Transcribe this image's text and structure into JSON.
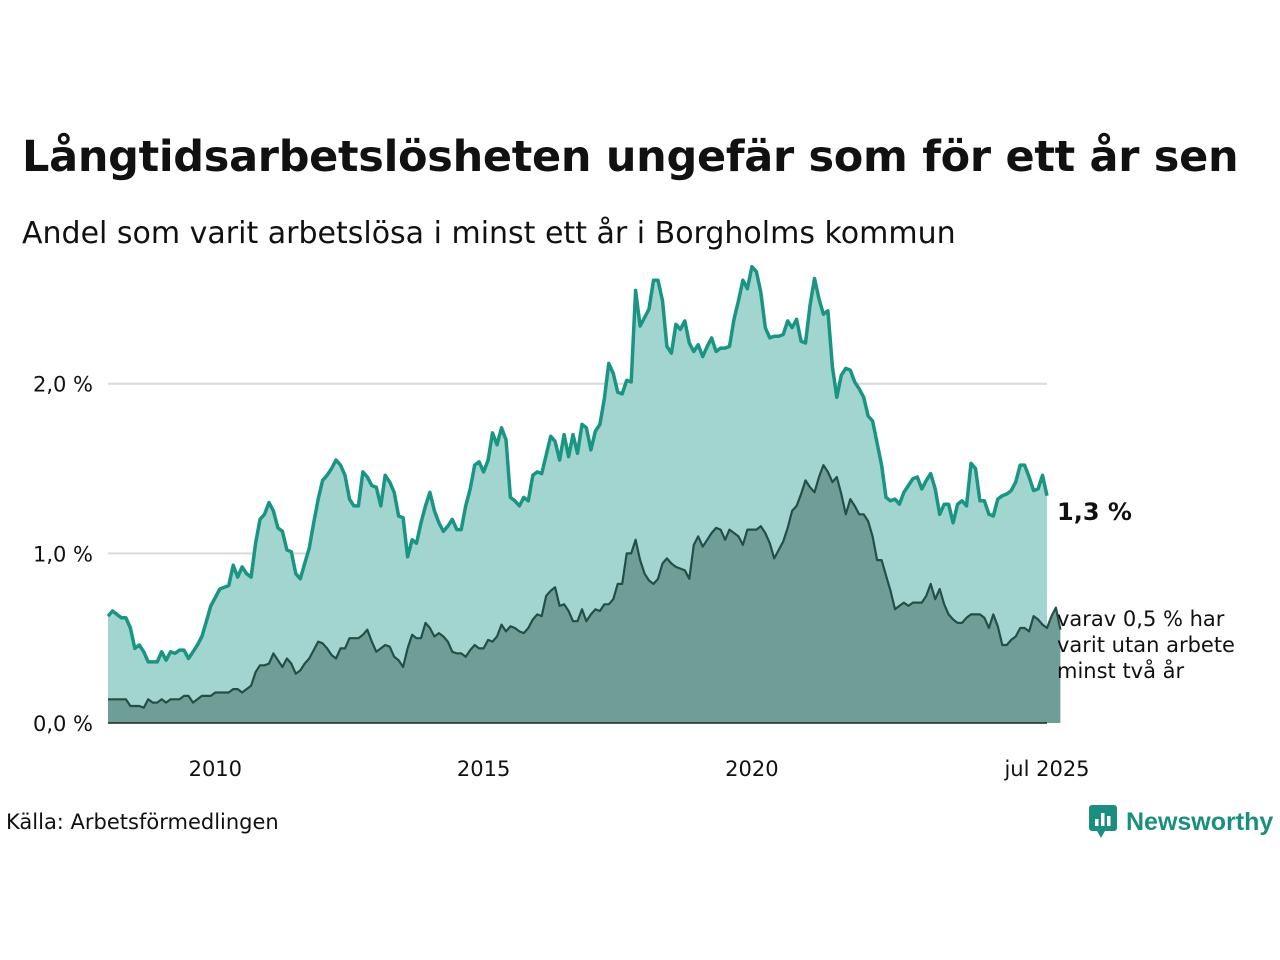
{
  "title": "Långtidsarbetslösheten ungefär som för ett år sen",
  "subtitle": "Andel som varit arbetslösa i minst ett år i Borgholms kommun",
  "source": "Källa: Arbetsförmedlingen",
  "brand": {
    "name": "Newsworthy",
    "icon": "newsworthy-logo-icon"
  },
  "colors": {
    "series1_line": "#1a9483",
    "series1_fill": "#a2d5cf",
    "series2_line": "#244f49",
    "series2_fill": "#6f9e96",
    "grid": "#d9d9d9",
    "brand": "#1a8f7f"
  },
  "chart_data": {
    "type": "area",
    "x_start": "2008-01",
    "x_end": "2025-07",
    "x_frequency": "monthly",
    "xlim": [
      "2008-01",
      "2025-07"
    ],
    "ylim": [
      0,
      2.8
    ],
    "y_ticks": [
      0,
      1,
      2
    ],
    "y_tick_labels": [
      "0,0 %",
      "1,0 %",
      "2,0 %"
    ],
    "x_ticks": [
      "2010-01",
      "2015-01",
      "2020-01",
      "2025-07"
    ],
    "x_tick_labels": [
      "2010",
      "2015",
      "2020",
      "jul 2025"
    ],
    "grid": true,
    "end_label": "1,3 %",
    "series2_label_lines": [
      "varav 0,5 % har",
      "varit utan arbete",
      "minst två år"
    ],
    "series": [
      {
        "name": "Andel arbetslösa minst ett år",
        "values": [
          0.63,
          0.66,
          0.64,
          0.62,
          0.62,
          0.56,
          0.44,
          0.46,
          0.42,
          0.36,
          0.36,
          0.36,
          0.42,
          0.37,
          0.42,
          0.41,
          0.43,
          0.43,
          0.38,
          0.42,
          0.46,
          0.51,
          0.6,
          0.69,
          0.74,
          0.79,
          0.8,
          0.81,
          0.93,
          0.86,
          0.92,
          0.88,
          0.86,
          1.06,
          1.2,
          1.23,
          1.3,
          1.25,
          1.15,
          1.13,
          1.02,
          1.01,
          0.88,
          0.85,
          0.94,
          1.03,
          1.18,
          1.32,
          1.43,
          1.46,
          1.5,
          1.55,
          1.52,
          1.46,
          1.32,
          1.28,
          1.28,
          1.48,
          1.45,
          1.4,
          1.39,
          1.28,
          1.46,
          1.42,
          1.36,
          1.22,
          1.21,
          0.98,
          1.08,
          1.06,
          1.18,
          1.28,
          1.36,
          1.25,
          1.18,
          1.13,
          1.16,
          1.2,
          1.14,
          1.14,
          1.28,
          1.38,
          1.52,
          1.54,
          1.48,
          1.55,
          1.71,
          1.64,
          1.74,
          1.67,
          1.33,
          1.31,
          1.28,
          1.33,
          1.31,
          1.46,
          1.48,
          1.47,
          1.58,
          1.69,
          1.66,
          1.55,
          1.7,
          1.57,
          1.7,
          1.59,
          1.76,
          1.74,
          1.61,
          1.72,
          1.76,
          1.91,
          2.12,
          2.06,
          1.95,
          1.94,
          2.02,
          2.01,
          2.55,
          2.34,
          2.39,
          2.44,
          2.61,
          2.61,
          2.49,
          2.22,
          2.18,
          2.35,
          2.32,
          2.37,
          2.24,
          2.19,
          2.23,
          2.16,
          2.22,
          2.27,
          2.19,
          2.21,
          2.21,
          2.22,
          2.38,
          2.49,
          2.61,
          2.56,
          2.69,
          2.66,
          2.54,
          2.33,
          2.27,
          2.28,
          2.28,
          2.29,
          2.37,
          2.33,
          2.38,
          2.25,
          2.24,
          2.46,
          2.62,
          2.5,
          2.41,
          2.43,
          2.1,
          1.92,
          2.05,
          2.09,
          2.08,
          2.01,
          1.97,
          1.92,
          1.81,
          1.78,
          1.65,
          1.52,
          1.33,
          1.31,
          1.32,
          1.29,
          1.36,
          1.4,
          1.44,
          1.45,
          1.38,
          1.43,
          1.47,
          1.38,
          1.23,
          1.29,
          1.29,
          1.18,
          1.29,
          1.31,
          1.28,
          1.53,
          1.5,
          1.31,
          1.31,
          1.23,
          1.22,
          1.32,
          1.34,
          1.35,
          1.37,
          1.42,
          1.52,
          1.52,
          1.45,
          1.37,
          1.38,
          1.46,
          1.34
        ]
      },
      {
        "name": "varav utan arbete minst två år",
        "values": [
          0.14,
          0.14,
          0.14,
          0.14,
          0.14,
          0.1,
          0.1,
          0.1,
          0.09,
          0.14,
          0.12,
          0.12,
          0.14,
          0.12,
          0.14,
          0.14,
          0.14,
          0.16,
          0.16,
          0.12,
          0.14,
          0.16,
          0.16,
          0.16,
          0.18,
          0.18,
          0.18,
          0.18,
          0.2,
          0.2,
          0.18,
          0.2,
          0.22,
          0.3,
          0.34,
          0.34,
          0.35,
          0.41,
          0.37,
          0.33,
          0.38,
          0.35,
          0.29,
          0.31,
          0.35,
          0.38,
          0.43,
          0.48,
          0.47,
          0.44,
          0.4,
          0.38,
          0.44,
          0.44,
          0.5,
          0.5,
          0.5,
          0.52,
          0.55,
          0.48,
          0.42,
          0.44,
          0.46,
          0.45,
          0.39,
          0.37,
          0.33,
          0.44,
          0.52,
          0.5,
          0.5,
          0.59,
          0.56,
          0.51,
          0.53,
          0.51,
          0.48,
          0.42,
          0.41,
          0.41,
          0.39,
          0.43,
          0.46,
          0.44,
          0.44,
          0.49,
          0.48,
          0.51,
          0.58,
          0.54,
          0.57,
          0.56,
          0.54,
          0.53,
          0.56,
          0.61,
          0.64,
          0.63,
          0.75,
          0.78,
          0.8,
          0.69,
          0.7,
          0.66,
          0.6,
          0.6,
          0.67,
          0.6,
          0.64,
          0.67,
          0.66,
          0.7,
          0.7,
          0.73,
          0.82,
          0.82,
          1.0,
          1.0,
          1.08,
          0.96,
          0.88,
          0.84,
          0.82,
          0.85,
          0.94,
          0.97,
          0.94,
          0.92,
          0.91,
          0.9,
          0.85,
          1.05,
          1.1,
          1.04,
          1.08,
          1.12,
          1.15,
          1.14,
          1.08,
          1.14,
          1.12,
          1.1,
          1.05,
          1.14,
          1.14,
          1.14,
          1.16,
          1.12,
          1.06,
          0.97,
          1.02,
          1.07,
          1.15,
          1.25,
          1.28,
          1.35,
          1.43,
          1.39,
          1.36,
          1.45,
          1.52,
          1.48,
          1.42,
          1.45,
          1.35,
          1.23,
          1.32,
          1.28,
          1.23,
          1.23,
          1.19,
          1.1,
          0.96,
          0.96,
          0.87,
          0.78,
          0.67,
          0.69,
          0.71,
          0.69,
          0.71,
          0.71,
          0.71,
          0.75,
          0.82,
          0.73,
          0.79,
          0.7,
          0.64,
          0.61,
          0.59,
          0.59,
          0.62,
          0.64,
          0.64,
          0.64,
          0.62,
          0.56,
          0.64,
          0.57,
          0.46,
          0.46,
          0.49,
          0.51,
          0.56,
          0.56,
          0.54,
          0.63,
          0.61,
          0.58,
          0.56,
          0.63,
          0.68,
          0.55
        ]
      }
    ]
  }
}
